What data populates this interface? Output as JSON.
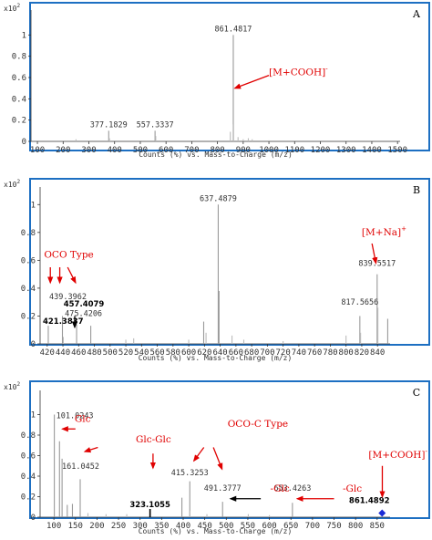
{
  "chart_data": [
    {
      "type": "bar",
      "panel": "A",
      "y_multiplier": "x10 2",
      "xlabel": "Counts (%) vs. Mass-to-Charge (m/z)",
      "xlim": [
        75,
        1510
      ],
      "ylim": [
        0,
        1.2
      ],
      "xticks": [
        100,
        200,
        300,
        400,
        500,
        600,
        700,
        800,
        900,
        1000,
        1100,
        1200,
        1300,
        1400,
        1500
      ],
      "yticks": [
        0,
        0.2,
        0.4,
        0.6,
        0.8,
        1
      ],
      "ytick_labels": [
        "0",
        "0.2",
        "0.4",
        "0.6",
        "0.8",
        "1"
      ],
      "peaks": [
        {
          "mz": 861.4817,
          "y": 1.0,
          "color": "#999999"
        },
        {
          "mz": 377.1829,
          "y": 0.1,
          "color": "#999999"
        },
        {
          "mz": 557.3337,
          "y": 0.1,
          "color": "#999999"
        },
        {
          "mz": 862.5,
          "y": 0.16,
          "color": "#bbbbbb"
        },
        {
          "mz": 850.0,
          "y": 0.09,
          "color": "#bbbbbb"
        },
        {
          "mz": 880.0,
          "y": 0.04,
          "color": "#bbbbbb"
        },
        {
          "mz": 900.0,
          "y": 0.02,
          "color": "#bbbbbb"
        },
        {
          "mz": 920.0,
          "y": 0.03,
          "color": "#bbbbbb"
        },
        {
          "mz": 935.0,
          "y": 0.02,
          "color": "#bbbbbb"
        },
        {
          "mz": 560.0,
          "y": 0.05,
          "color": "#bbbbbb"
        },
        {
          "mz": 380.0,
          "y": 0.03,
          "color": "#bbbbbb"
        },
        {
          "mz": 250.0,
          "y": 0.02,
          "color": "#bbbbbb"
        },
        {
          "mz": 1000.0,
          "y": 0.01,
          "color": "#bbbbbb"
        }
      ],
      "peak_labels": [
        {
          "text": "861.4817",
          "mz": 861.4817,
          "y": 1.0,
          "style": "mono"
        },
        {
          "text": "377.1829",
          "mz": 377.1829,
          "y": 0.1,
          "style": "mono"
        },
        {
          "text": "557.3337",
          "mz": 557.3337,
          "y": 0.1,
          "style": "mono"
        }
      ],
      "annotations": [
        {
          "text": "[M+COOH]",
          "sup": "-",
          "color": "#e00000",
          "mz": 1000,
          "y": 0.62
        }
      ],
      "arrows": [
        {
          "from": [
            1000,
            0.62
          ],
          "to": [
            868,
            0.5
          ],
          "color": "#e00000"
        }
      ]
    },
    {
      "type": "bar",
      "panel": "B",
      "y_multiplier": "x10 2",
      "xlabel": "Counts (%) vs. Mass-to-Charge (m/z)",
      "xlim": [
        411,
        856
      ],
      "ylim": [
        0,
        1.1
      ],
      "xticks": [
        420,
        440,
        460,
        480,
        500,
        520,
        540,
        560,
        580,
        600,
        620,
        640,
        660,
        680,
        700,
        720,
        740,
        760,
        780,
        800,
        820,
        840
      ],
      "yticks": [
        0,
        0.2,
        0.4,
        0.6,
        0.8,
        1
      ],
      "ytick_labels": [
        "0",
        "0.2",
        "0.4",
        "0.6",
        "0.8",
        "1"
      ],
      "peaks": [
        {
          "mz": 637.4879,
          "y": 1.0,
          "color": "#999999"
        },
        {
          "mz": 839.5517,
          "y": 0.5,
          "color": "#999999"
        },
        {
          "mz": 421.3837,
          "y": 0.13,
          "color": "#999999"
        },
        {
          "mz": 439.3962,
          "y": 0.2,
          "color": "#999999"
        },
        {
          "mz": 457.4079,
          "y": 0.14,
          "color": "#999999"
        },
        {
          "mz": 475.4206,
          "y": 0.13,
          "color": "#999999"
        },
        {
          "mz": 817.5656,
          "y": 0.2,
          "color": "#999999"
        },
        {
          "mz": 638.5,
          "y": 0.38,
          "color": "#999999"
        },
        {
          "mz": 619.0,
          "y": 0.16,
          "color": "#999999"
        },
        {
          "mz": 853.0,
          "y": 0.18,
          "color": "#999999"
        },
        {
          "mz": 622.0,
          "y": 0.08,
          "color": "#bbbbbb"
        },
        {
          "mz": 655.0,
          "y": 0.06,
          "color": "#bbbbbb"
        },
        {
          "mz": 800.0,
          "y": 0.06,
          "color": "#bbbbbb"
        },
        {
          "mz": 840.5,
          "y": 0.26,
          "color": "#bbbbbb"
        },
        {
          "mz": 818.5,
          "y": 0.08,
          "color": "#bbbbbb"
        },
        {
          "mz": 440.5,
          "y": 0.05,
          "color": "#bbbbbb"
        },
        {
          "mz": 520.0,
          "y": 0.03,
          "color": "#bbbbbb"
        },
        {
          "mz": 530.0,
          "y": 0.04,
          "color": "#bbbbbb"
        },
        {
          "mz": 600.0,
          "y": 0.03,
          "color": "#bbbbbb"
        },
        {
          "mz": 670.0,
          "y": 0.03,
          "color": "#bbbbbb"
        },
        {
          "mz": 720.0,
          "y": 0.02,
          "color": "#bbbbbb"
        }
      ],
      "peak_labels": [
        {
          "text": "637.4879",
          "mz": 637.4879,
          "y": 1.0,
          "style": "mono"
        },
        {
          "text": "839.5517",
          "mz": 839.5517,
          "y": 0.5,
          "style": "mono"
        },
        {
          "text": "421.3837",
          "mz": 421.3837,
          "y": 0.13,
          "style": "dark"
        },
        {
          "text": "439.3962",
          "mz": 439.3962,
          "y": 0.2,
          "style": "mono"
        },
        {
          "text": "457.4079",
          "mz": 457.4079,
          "y": 0.14,
          "style": "dark"
        },
        {
          "text": "475.4206",
          "mz": 475.4206,
          "y": 0.13,
          "style": "mono"
        },
        {
          "text": "817.5656",
          "mz": 817.5656,
          "y": 0.2,
          "style": "mono"
        }
      ],
      "annotations": [
        {
          "text": "OCO Type",
          "color": "#e00000",
          "mz": 416,
          "y": 0.62
        },
        {
          "text": "[M+Na]",
          "sup": "+",
          "color": "#e00000",
          "mz": 820,
          "y": 0.78
        }
      ],
      "arrows": [
        {
          "from": [
            424,
            0.55
          ],
          "to": [
            424,
            0.44
          ],
          "color": "#e00000"
        },
        {
          "from": [
            436,
            0.55
          ],
          "to": [
            436,
            0.44
          ],
          "color": "#e00000"
        },
        {
          "from": [
            446,
            0.55
          ],
          "to": [
            456,
            0.44
          ],
          "color": "#e00000"
        },
        {
          "from": [
            833,
            0.72
          ],
          "to": [
            838,
            0.58
          ],
          "color": "#e00000"
        },
        {
          "from": [
            455,
            0.2
          ],
          "to": [
            455,
            0.12
          ],
          "color": "#000000"
        }
      ]
    },
    {
      "type": "bar",
      "panel": "C",
      "y_multiplier": "x10 2",
      "xlabel": "Counts (%) vs. Mass-to-Charge (m/z)",
      "xlim": [
        68,
        880
      ],
      "ylim": [
        0,
        1.2
      ],
      "xticks": [
        100,
        150,
        200,
        250,
        300,
        350,
        400,
        450,
        500,
        550,
        600,
        650,
        700,
        750,
        800,
        850
      ],
      "yticks": [
        0,
        0.2,
        0.4,
        0.6,
        0.8,
        1
      ],
      "ytick_labels": [
        "0",
        "0.2",
        "0.4",
        "0.6",
        "0.8",
        "1"
      ],
      "peaks": [
        {
          "mz": 101.0243,
          "y": 1.0,
          "color": "#999999"
        },
        {
          "mz": 113.0,
          "y": 0.74,
          "color": "#999999"
        },
        {
          "mz": 119.0,
          "y": 0.57,
          "color": "#999999"
        },
        {
          "mz": 161.0452,
          "y": 0.37,
          "color": "#999999"
        },
        {
          "mz": 143.0,
          "y": 0.13,
          "color": "#999999"
        },
        {
          "mz": 131.0,
          "y": 0.12,
          "color": "#999999"
        },
        {
          "mz": 323.1055,
          "y": 0.08,
          "color": "#000000"
        },
        {
          "mz": 415.3253,
          "y": 0.35,
          "color": "#999999"
        },
        {
          "mz": 397.0,
          "y": 0.19,
          "color": "#999999"
        },
        {
          "mz": 491.3777,
          "y": 0.15,
          "color": "#999999"
        },
        {
          "mz": 653.4263,
          "y": 0.14,
          "color": "#999999"
        },
        {
          "mz": 861.4892,
          "y": 0.01,
          "color": "#999999"
        },
        {
          "mz": 179.0,
          "y": 0.04,
          "color": "#bbbbbb"
        },
        {
          "mz": 221.0,
          "y": 0.03,
          "color": "#bbbbbb"
        },
        {
          "mz": 269.0,
          "y": 0.03,
          "color": "#bbbbbb"
        },
        {
          "mz": 415.0,
          "y": 0.06,
          "color": "#bbbbbb"
        },
        {
          "mz": 455.0,
          "y": 0.03,
          "color": "#bbbbbb"
        },
        {
          "mz": 551.0,
          "y": 0.03,
          "color": "#bbbbbb"
        },
        {
          "mz": 600.0,
          "y": 0.02,
          "color": "#bbbbbb"
        }
      ],
      "peak_labels": [
        {
          "text": "101.0243",
          "mz": 101.0243,
          "y": 1.0,
          "style": "mono"
        },
        {
          "text": "161.0452",
          "mz": 161.0452,
          "y": 0.37,
          "style": "mono"
        },
        {
          "text": "415.3253",
          "mz": 415.3253,
          "y": 0.35,
          "style": "mono"
        },
        {
          "text": "491.3777",
          "mz": 491.3777,
          "y": 0.15,
          "style": "mono"
        },
        {
          "text": "653.4263",
          "mz": 653.4263,
          "y": 0.14,
          "style": "mono"
        },
        {
          "text": "323.1055",
          "mz": 323.1055,
          "y": 0.08,
          "style": "dark"
        },
        {
          "text": "861.4892",
          "mz": 861.4892,
          "y": 0.01,
          "style": "dark"
        }
      ],
      "annotations": [
        {
          "text": "Glc",
          "color": "#e00000",
          "mz": 148,
          "y": 0.93
        },
        {
          "text": "Glc-Glc",
          "color": "#e00000",
          "mz": 290,
          "y": 0.73
        },
        {
          "text": "OCO-C Type",
          "color": "#e00000",
          "mz": 503,
          "y": 0.88
        },
        {
          "text": "-Glc",
          "color": "#e00000",
          "mz": 602,
          "y": 0.25
        },
        {
          "text": "-Glc",
          "color": "#e00000",
          "mz": 770,
          "y": 0.25
        },
        {
          "text": "[M+COOH]",
          "sup": "-",
          "color": "#e00000",
          "mz": 830,
          "y": 0.58
        }
      ],
      "arrows": [
        {
          "from": [
            150,
            0.86
          ],
          "to": [
            120,
            0.86
          ],
          "color": "#e00000"
        },
        {
          "from": [
            202,
            0.68
          ],
          "to": [
            172,
            0.64
          ],
          "color": "#e00000"
        },
        {
          "from": [
            330,
            0.62
          ],
          "to": [
            330,
            0.48
          ],
          "color": "#e00000"
        },
        {
          "from": [
            448,
            0.68
          ],
          "to": [
            425,
            0.55
          ],
          "color": "#e00000"
        },
        {
          "from": [
            470,
            0.68
          ],
          "to": [
            490,
            0.47
          ],
          "color": "#e00000"
        },
        {
          "from": [
            580,
            0.18
          ],
          "to": [
            510,
            0.18
          ],
          "color": "#000000"
        },
        {
          "from": [
            750,
            0.18
          ],
          "to": [
            665,
            0.18
          ],
          "color": "#e00000"
        },
        {
          "from": [
            862,
            0.5
          ],
          "to": [
            862,
            0.2
          ],
          "color": "#e00000"
        }
      ],
      "markers": [
        {
          "mz": 861.4892,
          "y": 0.04,
          "shape": "diamond",
          "color": "#1a2bd6"
        }
      ]
    }
  ]
}
